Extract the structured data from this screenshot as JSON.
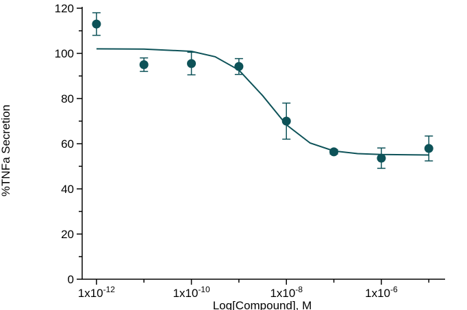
{
  "chart_data": {
    "type": "scatter",
    "xlabel": "Log[Compound], M",
    "ylabel": "%TNFa Secretion",
    "log_x": true,
    "xlim": [
      5e-13,
      2.2e-05
    ],
    "ylim": [
      0,
      120
    ],
    "xticks": [
      {
        "value": 1e-12,
        "label": "1x10",
        "superscript": "-12"
      },
      {
        "value": 1e-10,
        "label": "1x10",
        "superscript": "-10"
      },
      {
        "value": 1e-08,
        "label": "1x10",
        "superscript": "-8"
      },
      {
        "value": 1e-06,
        "label": "1x10",
        "superscript": "-6"
      }
    ],
    "xticks_minor": [
      1e-11,
      1e-09,
      1e-07,
      1e-05
    ],
    "yticks": [
      0,
      20,
      40,
      60,
      80,
      100,
      120
    ],
    "yticks_minor": [
      10,
      30,
      50,
      70,
      90,
      110
    ],
    "color": "#0d5258",
    "points": {
      "x": [
        1e-12,
        1e-11,
        1e-10,
        1e-09,
        1e-08,
        1e-07,
        1e-06,
        1e-05
      ],
      "values": [
        113,
        95,
        95.5,
        94.2,
        70,
        56.4,
        53.6,
        57.9
      ],
      "errors": [
        5,
        3,
        5,
        3.5,
        8,
        1,
        4.5,
        5.5
      ]
    },
    "curve": {
      "x": [
        1e-12,
        1e-11,
        1e-10,
        3.16e-10,
        1e-09,
        3.16e-09,
        1e-08,
        3.16e-08,
        1e-07,
        3.16e-07,
        1e-06,
        1e-05
      ],
      "values": [
        102,
        101.9,
        100.9,
        98.5,
        92.6,
        81.3,
        68.4,
        60.3,
        56.8,
        55.6,
        55.2,
        55
      ]
    }
  }
}
